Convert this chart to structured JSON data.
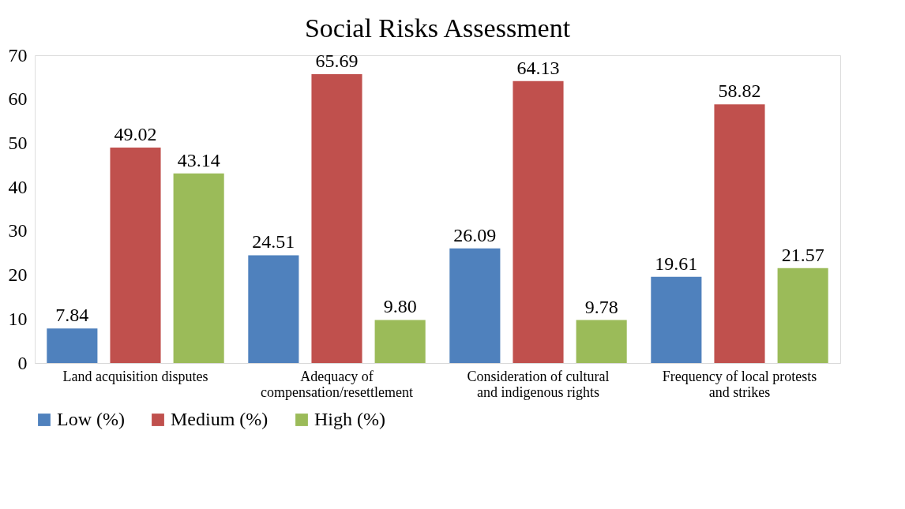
{
  "chart_data": {
    "type": "bar",
    "title": "Social Risks Assessment",
    "categories": [
      "Land acquisition disputes",
      "Adequacy of compensation/resettlement",
      "Consideration of cultural and indigenous rights",
      "Frequency of local protests and strikes"
    ],
    "series": [
      {
        "name": "Low (%)",
        "color": "#4f81bd",
        "values": [
          7.84,
          24.51,
          26.09,
          19.61
        ],
        "value_labels": [
          "7.84",
          "24.51",
          "26.09",
          "19.61"
        ]
      },
      {
        "name": "Medium (%)",
        "color": "#c0504d",
        "values": [
          49.02,
          65.69,
          64.13,
          58.82
        ],
        "value_labels": [
          "49.02",
          "65.69",
          "64.13",
          "58.82"
        ]
      },
      {
        "name": "High (%)",
        "color": "#9bbb59",
        "values": [
          43.14,
          9.8,
          9.78,
          21.57
        ],
        "value_labels": [
          "43.14",
          "9.80",
          "9.78",
          "21.57"
        ]
      }
    ],
    "ylim": [
      0,
      70
    ],
    "yticks": [
      0,
      10,
      20,
      30,
      40,
      50,
      60,
      70
    ],
    "legend": "bottom"
  }
}
